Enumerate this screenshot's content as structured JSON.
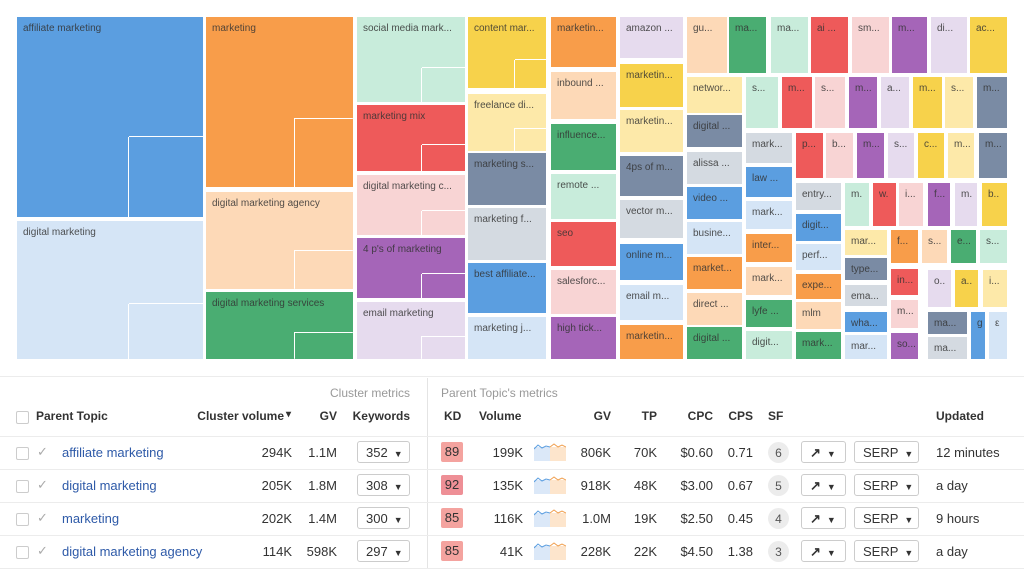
{
  "colors": {
    "blue": "#5b9ee0",
    "lblue": "#d5e5f6",
    "orange": "#f89d4a",
    "lorange": "#fdd9b7",
    "mint": "#c8ecdb",
    "red": "#ee5a5a",
    "pink": "#f8d4d4",
    "purple": "#a565b8",
    "lav": "#e6dbee",
    "green": "#4aad72",
    "yellow": "#f7d24b",
    "lyellow": "#fde9a9",
    "slate": "#7a8ba4",
    "gray": "#d4dae1"
  },
  "chart_data": {
    "type": "treemap",
    "tiles": [
      {
        "label": "affiliate marketing",
        "color": "blue"
      },
      {
        "label": "digital marketing",
        "color": "lblue"
      },
      {
        "label": "marketing",
        "color": "orange"
      },
      {
        "label": "digital marketing agency",
        "color": "lorange"
      },
      {
        "label": "digital marketing services",
        "color": "green"
      },
      {
        "label": "social media mark...",
        "color": "mint"
      },
      {
        "label": "marketing mix",
        "color": "red"
      },
      {
        "label": "digital marketing c...",
        "color": "pink"
      },
      {
        "label": "4 p's of marketing",
        "color": "purple"
      },
      {
        "label": "email marketing",
        "color": "lav"
      },
      {
        "label": "content mar...",
        "color": "yellow"
      },
      {
        "label": "freelance di...",
        "color": "lyellow"
      },
      {
        "label": "marketing s...",
        "color": "slate"
      },
      {
        "label": "marketing f...",
        "color": "gray"
      },
      {
        "label": "best affiliate...",
        "color": "blue"
      },
      {
        "label": "marketing j...",
        "color": "lblue"
      },
      {
        "label": "marketin...",
        "color": "orange"
      },
      {
        "label": "inbound ...",
        "color": "lorange"
      },
      {
        "label": "influence...",
        "color": "green"
      },
      {
        "label": "remote ...",
        "color": "mint"
      },
      {
        "label": "seo",
        "color": "red"
      },
      {
        "label": "salesforc...",
        "color": "pink"
      },
      {
        "label": "high tick...",
        "color": "purple"
      },
      {
        "label": "amazon ...",
        "color": "lav"
      },
      {
        "label": "marketin...",
        "color": "yellow"
      },
      {
        "label": "marketin...",
        "color": "lyellow"
      },
      {
        "label": "4ps of m...",
        "color": "slate"
      },
      {
        "label": "vector m...",
        "color": "gray"
      },
      {
        "label": "online m...",
        "color": "blue"
      },
      {
        "label": "email m...",
        "color": "lblue"
      },
      {
        "label": "marketin...",
        "color": "orange"
      },
      {
        "label": "gu...",
        "color": "lorange"
      },
      {
        "label": "networ...",
        "color": "lyellow"
      },
      {
        "label": "digital ...",
        "color": "slate"
      },
      {
        "label": "alissa ...",
        "color": "gray"
      },
      {
        "label": "video ...",
        "color": "blue"
      },
      {
        "label": "busine...",
        "color": "lblue"
      },
      {
        "label": "market...",
        "color": "orange"
      },
      {
        "label": "direct ...",
        "color": "lorange"
      },
      {
        "label": "digital ...",
        "color": "green"
      },
      {
        "label": "ma...",
        "color": "green"
      },
      {
        "label": "ma...",
        "color": "mint"
      },
      {
        "label": "ai ...",
        "color": "red"
      },
      {
        "label": "sm...",
        "color": "pink"
      },
      {
        "label": "m...",
        "color": "purple"
      },
      {
        "label": "di...",
        "color": "lav"
      },
      {
        "label": "ac...",
        "color": "yellow"
      },
      {
        "label": "s...",
        "color": "mint"
      },
      {
        "label": "m...",
        "color": "red"
      },
      {
        "label": "s...",
        "color": "pink"
      },
      {
        "label": "m...",
        "color": "purple"
      },
      {
        "label": "a...",
        "color": "lav"
      },
      {
        "label": "m...",
        "color": "yellow"
      },
      {
        "label": "s...",
        "color": "lyellow"
      },
      {
        "label": "m...",
        "color": "slate"
      },
      {
        "label": "mark...",
        "color": "gray"
      },
      {
        "label": "law ...",
        "color": "blue"
      },
      {
        "label": "mark...",
        "color": "lblue"
      },
      {
        "label": "inter...",
        "color": "orange"
      },
      {
        "label": "mark...",
        "color": "lorange"
      },
      {
        "label": "lyfe ...",
        "color": "green"
      },
      {
        "label": "digit...",
        "color": "mint"
      },
      {
        "label": "p...",
        "color": "red"
      },
      {
        "label": "b...",
        "color": "pink"
      },
      {
        "label": "m...",
        "color": "purple"
      },
      {
        "label": "s...",
        "color": "lav"
      },
      {
        "label": "c...",
        "color": "yellow"
      },
      {
        "label": "m...",
        "color": "lyellow"
      },
      {
        "label": "m...",
        "color": "slate"
      },
      {
        "label": "entry...",
        "color": "gray"
      },
      {
        "label": "digit...",
        "color": "blue"
      },
      {
        "label": "perf...",
        "color": "lblue"
      },
      {
        "label": "expe...",
        "color": "orange"
      },
      {
        "label": "mlm",
        "color": "lorange"
      },
      {
        "label": "mark...",
        "color": "green"
      },
      {
        "label": "m.",
        "color": "mint"
      },
      {
        "label": "w.",
        "color": "red"
      },
      {
        "label": "i...",
        "color": "pink"
      },
      {
        "label": "f...",
        "color": "purple"
      },
      {
        "label": "m.",
        "color": "lav"
      },
      {
        "label": "b..",
        "color": "yellow"
      },
      {
        "label": "mar...",
        "color": "lyellow"
      },
      {
        "label": "type...",
        "color": "slate"
      },
      {
        "label": "ema...",
        "color": "gray"
      },
      {
        "label": "wha...",
        "color": "blue"
      },
      {
        "label": "mar...",
        "color": "lblue"
      },
      {
        "label": "f...",
        "color": "orange"
      },
      {
        "label": "s...",
        "color": "lorange"
      },
      {
        "label": "e...",
        "color": "green"
      },
      {
        "label": "s...",
        "color": "mint"
      },
      {
        "label": "in...",
        "color": "red"
      },
      {
        "label": "o..",
        "color": "lav"
      },
      {
        "label": "a..",
        "color": "yellow"
      },
      {
        "label": "i...",
        "color": "lyellow"
      },
      {
        "label": "m...",
        "color": "pink"
      },
      {
        "label": "so...",
        "color": "purple"
      },
      {
        "label": "ma...",
        "color": "slate"
      },
      {
        "label": "ma...",
        "color": "gray"
      },
      {
        "label": "g",
        "color": "blue"
      },
      {
        "label": "ε",
        "color": "lblue"
      }
    ]
  },
  "table": {
    "group_cluster": "Cluster metrics",
    "group_parent": "Parent Topic's metrics",
    "headers": {
      "topic": "Parent Topic",
      "cluster_volume": "Cluster volume",
      "gv": "GV",
      "keywords": "Keywords",
      "kd": "KD",
      "volume": "Volume",
      "pgv": "GV",
      "tp": "TP",
      "cpc": "CPC",
      "cps": "CPS",
      "sf": "SF",
      "updated": "Updated"
    },
    "sort_indicator": "▾",
    "rows": [
      {
        "topic": "affiliate marketing",
        "cluster_volume": "294K",
        "gv": "1.1M",
        "keywords": "352",
        "kd": "89",
        "kd_color": "#f4a39f",
        "volume": "199K",
        "pgv": "806K",
        "tp": "70K",
        "cpc": "$0.60",
        "cps": "0.71",
        "sf": "6",
        "serp": "SERP",
        "updated": "12 minutes"
      },
      {
        "topic": "digital marketing",
        "cluster_volume": "205K",
        "gv": "1.8M",
        "keywords": "308",
        "kd": "92",
        "kd_color": "#ee8f96",
        "volume": "135K",
        "pgv": "918K",
        "tp": "48K",
        "cpc": "$3.00",
        "cps": "0.67",
        "sf": "5",
        "serp": "SERP",
        "updated": "a day"
      },
      {
        "topic": "marketing",
        "cluster_volume": "202K",
        "gv": "1.4M",
        "keywords": "300",
        "kd": "85",
        "kd_color": "#f4a39f",
        "volume": "116K",
        "pgv": "1.0M",
        "tp": "19K",
        "cpc": "$2.50",
        "cps": "0.45",
        "sf": "4",
        "serp": "SERP",
        "updated": "9 hours"
      },
      {
        "topic": "digital marketing agency",
        "cluster_volume": "114K",
        "gv": "598K",
        "keywords": "297",
        "kd": "85",
        "kd_color": "#f4a39f",
        "volume": "41K",
        "pgv": "228K",
        "tp": "22K",
        "cpc": "$4.50",
        "cps": "1.38",
        "sf": "3",
        "serp": "SERP",
        "updated": "a day"
      }
    ]
  }
}
